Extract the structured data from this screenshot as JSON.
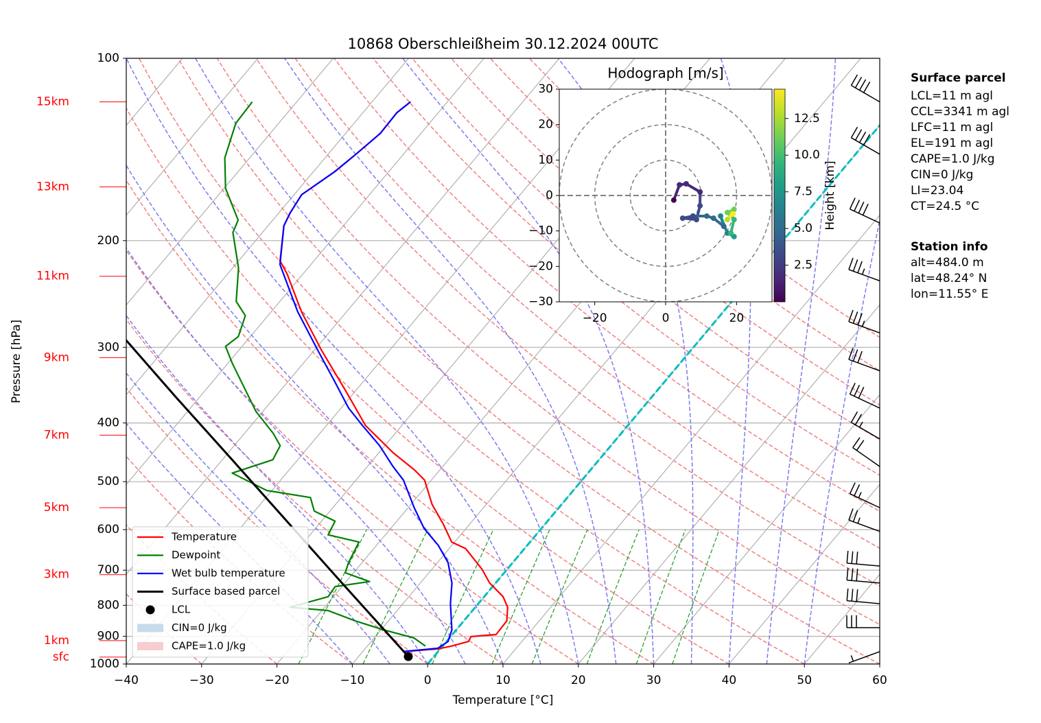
{
  "chart_data": {
    "type": "skewt",
    "title": "10868 Oberschleißheim 30.12.2024 00UTC",
    "xlabel": "Temperature [°C]",
    "ylabel": "Pressure [hPa]",
    "xlim": [
      -40,
      60
    ],
    "ylim": [
      1000,
      100
    ],
    "log_y": true,
    "grid": true,
    "xticks": [
      {
        "value": -40,
        "label": "−40"
      },
      {
        "value": -30,
        "label": "−30"
      },
      {
        "value": -20,
        "label": "−20"
      },
      {
        "value": -10,
        "label": "−10"
      },
      0,
      10,
      20,
      30,
      40,
      50,
      60
    ],
    "yticks": [
      100,
      200,
      300,
      400,
      500,
      600,
      700,
      800,
      900,
      1000
    ],
    "series": [
      {
        "name": "Temperature",
        "color": "#ff0000",
        "pressure": [
          954,
          944,
          934,
          918,
          901,
          894,
          849,
          806,
          774,
          735,
          698,
          645,
          629,
          589,
          545,
          497,
          478,
          448,
          404,
          354,
          303,
          262,
          227,
          216,
          189,
          180,
          168,
          154,
          144,
          133,
          123,
          118
        ],
        "values": [
          -4.6,
          -0.3,
          1.2,
          2.9,
          2.7,
          5.8,
          5.7,
          4.3,
          2.5,
          -0.8,
          -3.3,
          -7.8,
          -10.4,
          -13.4,
          -17.2,
          -20.9,
          -23.4,
          -28.1,
          -34.8,
          -41.3,
          -49.1,
          -56.0,
          -62.1,
          -64.5,
          -67.9,
          -68.5,
          -69.0,
          -67.2,
          -66.3,
          -65.4,
          -65.5,
          -64.9
        ]
      },
      {
        "name": "Dewpoint",
        "color": "#008000",
        "pressure": [
          934,
          906,
          878,
          849,
          816,
          806,
          774,
          745,
          731,
          707,
          680,
          629,
          612,
          581,
          559,
          531,
          517,
          484,
          460,
          436,
          416,
          383,
          319,
          299,
          288,
          266,
          252,
          222,
          194,
          185,
          164,
          146,
          128,
          118
        ],
        "values": [
          -2.3,
          -4.7,
          -9.7,
          -14.4,
          -19.2,
          -24.6,
          -20.7,
          -20.9,
          -16.9,
          -21.1,
          -21.8,
          -22.7,
          -27.6,
          -28.2,
          -32.1,
          -34.1,
          -40.7,
          -47.2,
          -43.3,
          -43.9,
          -46.2,
          -50.9,
          -59.4,
          -62.2,
          -61.6,
          -63.0,
          -65.8,
          -69.2,
          -73.9,
          -74.6,
          -79.8,
          -83.3,
          -85.7,
          -85.9
        ]
      },
      {
        "name": "Wet bulb temperature",
        "color": "#0000ff",
        "pressure": [
          954,
          942,
          918,
          878,
          795,
          735,
          680,
          637,
          597,
          552,
          497,
          472,
          436,
          404,
          378,
          341,
          303,
          262,
          243,
          219,
          189,
          180,
          168,
          154,
          144,
          133,
          123,
          118
        ],
        "values": [
          -4.7,
          -0.4,
          0.2,
          -0.6,
          -3.7,
          -5.8,
          -8.6,
          -11.8,
          -15.6,
          -19.2,
          -23.7,
          -26.6,
          -30.7,
          -35.2,
          -39.0,
          -43.9,
          -49.6,
          -56.5,
          -59.7,
          -64.1,
          -67.9,
          -68.5,
          -69.0,
          -67.2,
          -66.3,
          -65.4,
          -65.5,
          -64.9
        ]
      },
      {
        "name": "Surface based parcel",
        "color": "#000000",
        "pressure": [
          972,
          735,
          581,
          460,
          364,
          291
        ],
        "values": [
          -3.4,
          -20.4,
          -34.6,
          -48.7,
          -62.9,
          -76.3
        ]
      }
    ],
    "lcl": {
      "name": "LCL",
      "pressure": 972,
      "value": -3.4,
      "color": "#000000"
    },
    "legend_extra": [
      {
        "label": "CIN=0 J/kg",
        "color": "#c6dbeb"
      },
      {
        "label": "CAPE=1.0 J/kg",
        "color": "#f7cdd0"
      }
    ],
    "legend_loc": "lower left",
    "height_labels": [
      {
        "label": "15km",
        "pressure": 118
      },
      {
        "label": "13km",
        "pressure": 163
      },
      {
        "label": "11km",
        "pressure": 229
      },
      {
        "label": "9km",
        "pressure": 312
      },
      {
        "label": "7km",
        "pressure": 419
      },
      {
        "label": "5km",
        "pressure": 552
      },
      {
        "label": "3km",
        "pressure": 712
      },
      {
        "label": "1km",
        "pressure": 915
      },
      {
        "label": "sfc",
        "pressure": 974
      }
    ],
    "highlight_isotherm": {
      "value": 0,
      "color": "#00bfbf"
    },
    "dry_adiabats": [
      -30,
      -20,
      -10,
      0,
      10,
      20,
      30,
      40,
      50,
      60,
      70,
      80,
      90,
      100,
      110,
      120,
      130,
      140,
      150
    ],
    "moist_adiabats": [
      -10,
      -5,
      0,
      5,
      10,
      15,
      20,
      25,
      30,
      35,
      40,
      45,
      50
    ],
    "mixing_ratios": [
      1,
      2,
      4,
      7,
      10,
      16,
      24,
      32
    ],
    "wind_barbs": {
      "pressure": [
        118,
        144,
        187,
        233,
        284,
        328,
        378,
        425,
        472,
        552,
        604,
        689,
        735,
        795,
        871,
        954
      ],
      "direction": [
        300,
        300,
        295,
        290,
        290,
        290,
        295,
        300,
        305,
        295,
        290,
        275,
        275,
        275,
        270,
        250
      ],
      "speed": [
        40,
        40,
        40,
        35,
        35,
        30,
        30,
        25,
        20,
        25,
        25,
        30,
        30,
        30,
        30,
        5
      ]
    },
    "hodograph": {
      "title": "Hodograph [m/s]",
      "xlim": [
        -30,
        30
      ],
      "ylim": [
        -30,
        30
      ],
      "xticks": [
        {
          "value": -20,
          "label": "−20"
        },
        0,
        20
      ],
      "yticks": [
        30,
        20,
        10,
        0,
        {
          "value": -10,
          "label": "−10"
        },
        {
          "value": -20,
          "label": "−20"
        },
        {
          "value": -30,
          "label": "−30"
        }
      ],
      "rings": [
        10,
        20,
        30
      ],
      "u": [
        2.3,
        3.9,
        5.8,
        9.7,
        9.7,
        8.7,
        4.8,
        7.7,
        11.6,
        13.5,
        16.4,
        15.5,
        17.4,
        19.3,
        18.4,
        19.3,
        17.4,
        19.3,
        17.4,
        19.0
      ],
      "v": [
        -1.3,
        3.0,
        3.3,
        1.0,
        -2.9,
        -6.8,
        -6.4,
        -5.8,
        -5.8,
        -6.4,
        -8.7,
        -5.8,
        -10.6,
        -11.6,
        -10.6,
        -6.8,
        -4.8,
        -3.9,
        -6.8,
        -5.2
      ],
      "height": [
        0.5,
        1.0,
        1.5,
        2.0,
        2.5,
        3.0,
        3.5,
        4.0,
        4.5,
        5.0,
        5.5,
        6.0,
        7.0,
        8.0,
        9.0,
        10.0,
        11.0,
        12.0,
        13.0,
        14.0
      ],
      "colorbar": {
        "label": "Height [km]",
        "clim": [
          0,
          14.5
        ],
        "ticks": [
          2.5,
          {
            "value": 5,
            "label": "5.0"
          },
          7.5,
          {
            "value": 10,
            "label": "10.0"
          },
          12.5
        ]
      }
    }
  },
  "info": {
    "surface_parcel": {
      "title": "Surface parcel",
      "lines": [
        "LCL=11 m agl",
        "CCL=3341 m agl",
        "LFC=11 m agl",
        "EL=191 m agl",
        "CAPE=1.0 J/kg",
        "CIN=0 J/kg",
        "LI=23.04",
        "CT=24.5 °C"
      ]
    },
    "station": {
      "title": "Station info",
      "lines": [
        "alt=484.0 m",
        "lat=48.24° N",
        "lon=11.55° E"
      ]
    }
  }
}
